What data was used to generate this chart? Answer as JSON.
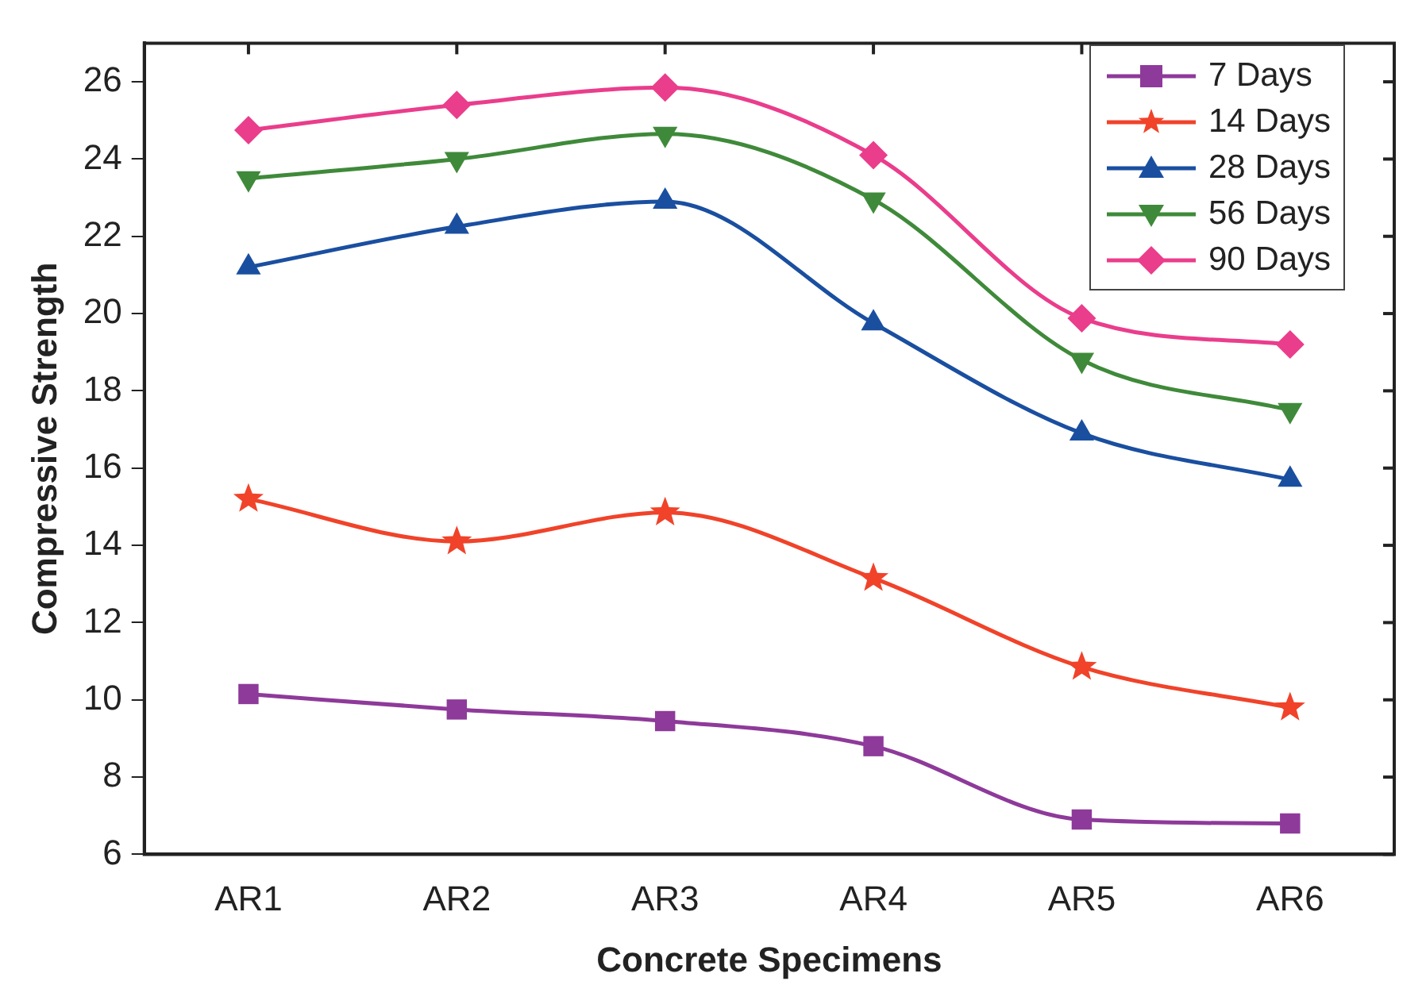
{
  "chart_data": {
    "type": "line",
    "xlabel": "Concrete Specimens",
    "ylabel": "Compressive Strength",
    "categories": [
      "AR1",
      "AR2",
      "AR3",
      "AR4",
      "AR5",
      "AR6"
    ],
    "series": [
      {
        "name": "7 Days",
        "color": "#8e3a9a",
        "marker": "square",
        "values": [
          10.15,
          9.75,
          9.45,
          8.8,
          6.9,
          6.8
        ]
      },
      {
        "name": "14 Days",
        "color": "#f0432a",
        "marker": "star",
        "values": [
          15.2,
          14.1,
          14.85,
          13.15,
          10.85,
          9.8
        ]
      },
      {
        "name": "28 Days",
        "color": "#1a4fa0",
        "marker": "triangle",
        "values": [
          21.2,
          22.25,
          22.9,
          19.75,
          16.9,
          15.7
        ]
      },
      {
        "name": "56 Days",
        "color": "#3f8a3a",
        "marker": "triangle-down",
        "values": [
          23.5,
          24.0,
          24.65,
          22.95,
          18.8,
          17.5
        ]
      },
      {
        "name": "90 Days",
        "color": "#ea3d8c",
        "marker": "diamond",
        "values": [
          24.75,
          25.4,
          25.85,
          24.1,
          19.88,
          19.2
        ]
      }
    ],
    "ylim": [
      6,
      27
    ],
    "yticks": [
      6,
      8,
      10,
      12,
      14,
      16,
      18,
      20,
      22,
      24,
      26
    ],
    "grid": false,
    "legend": "top right",
    "line_style": "solid"
  }
}
